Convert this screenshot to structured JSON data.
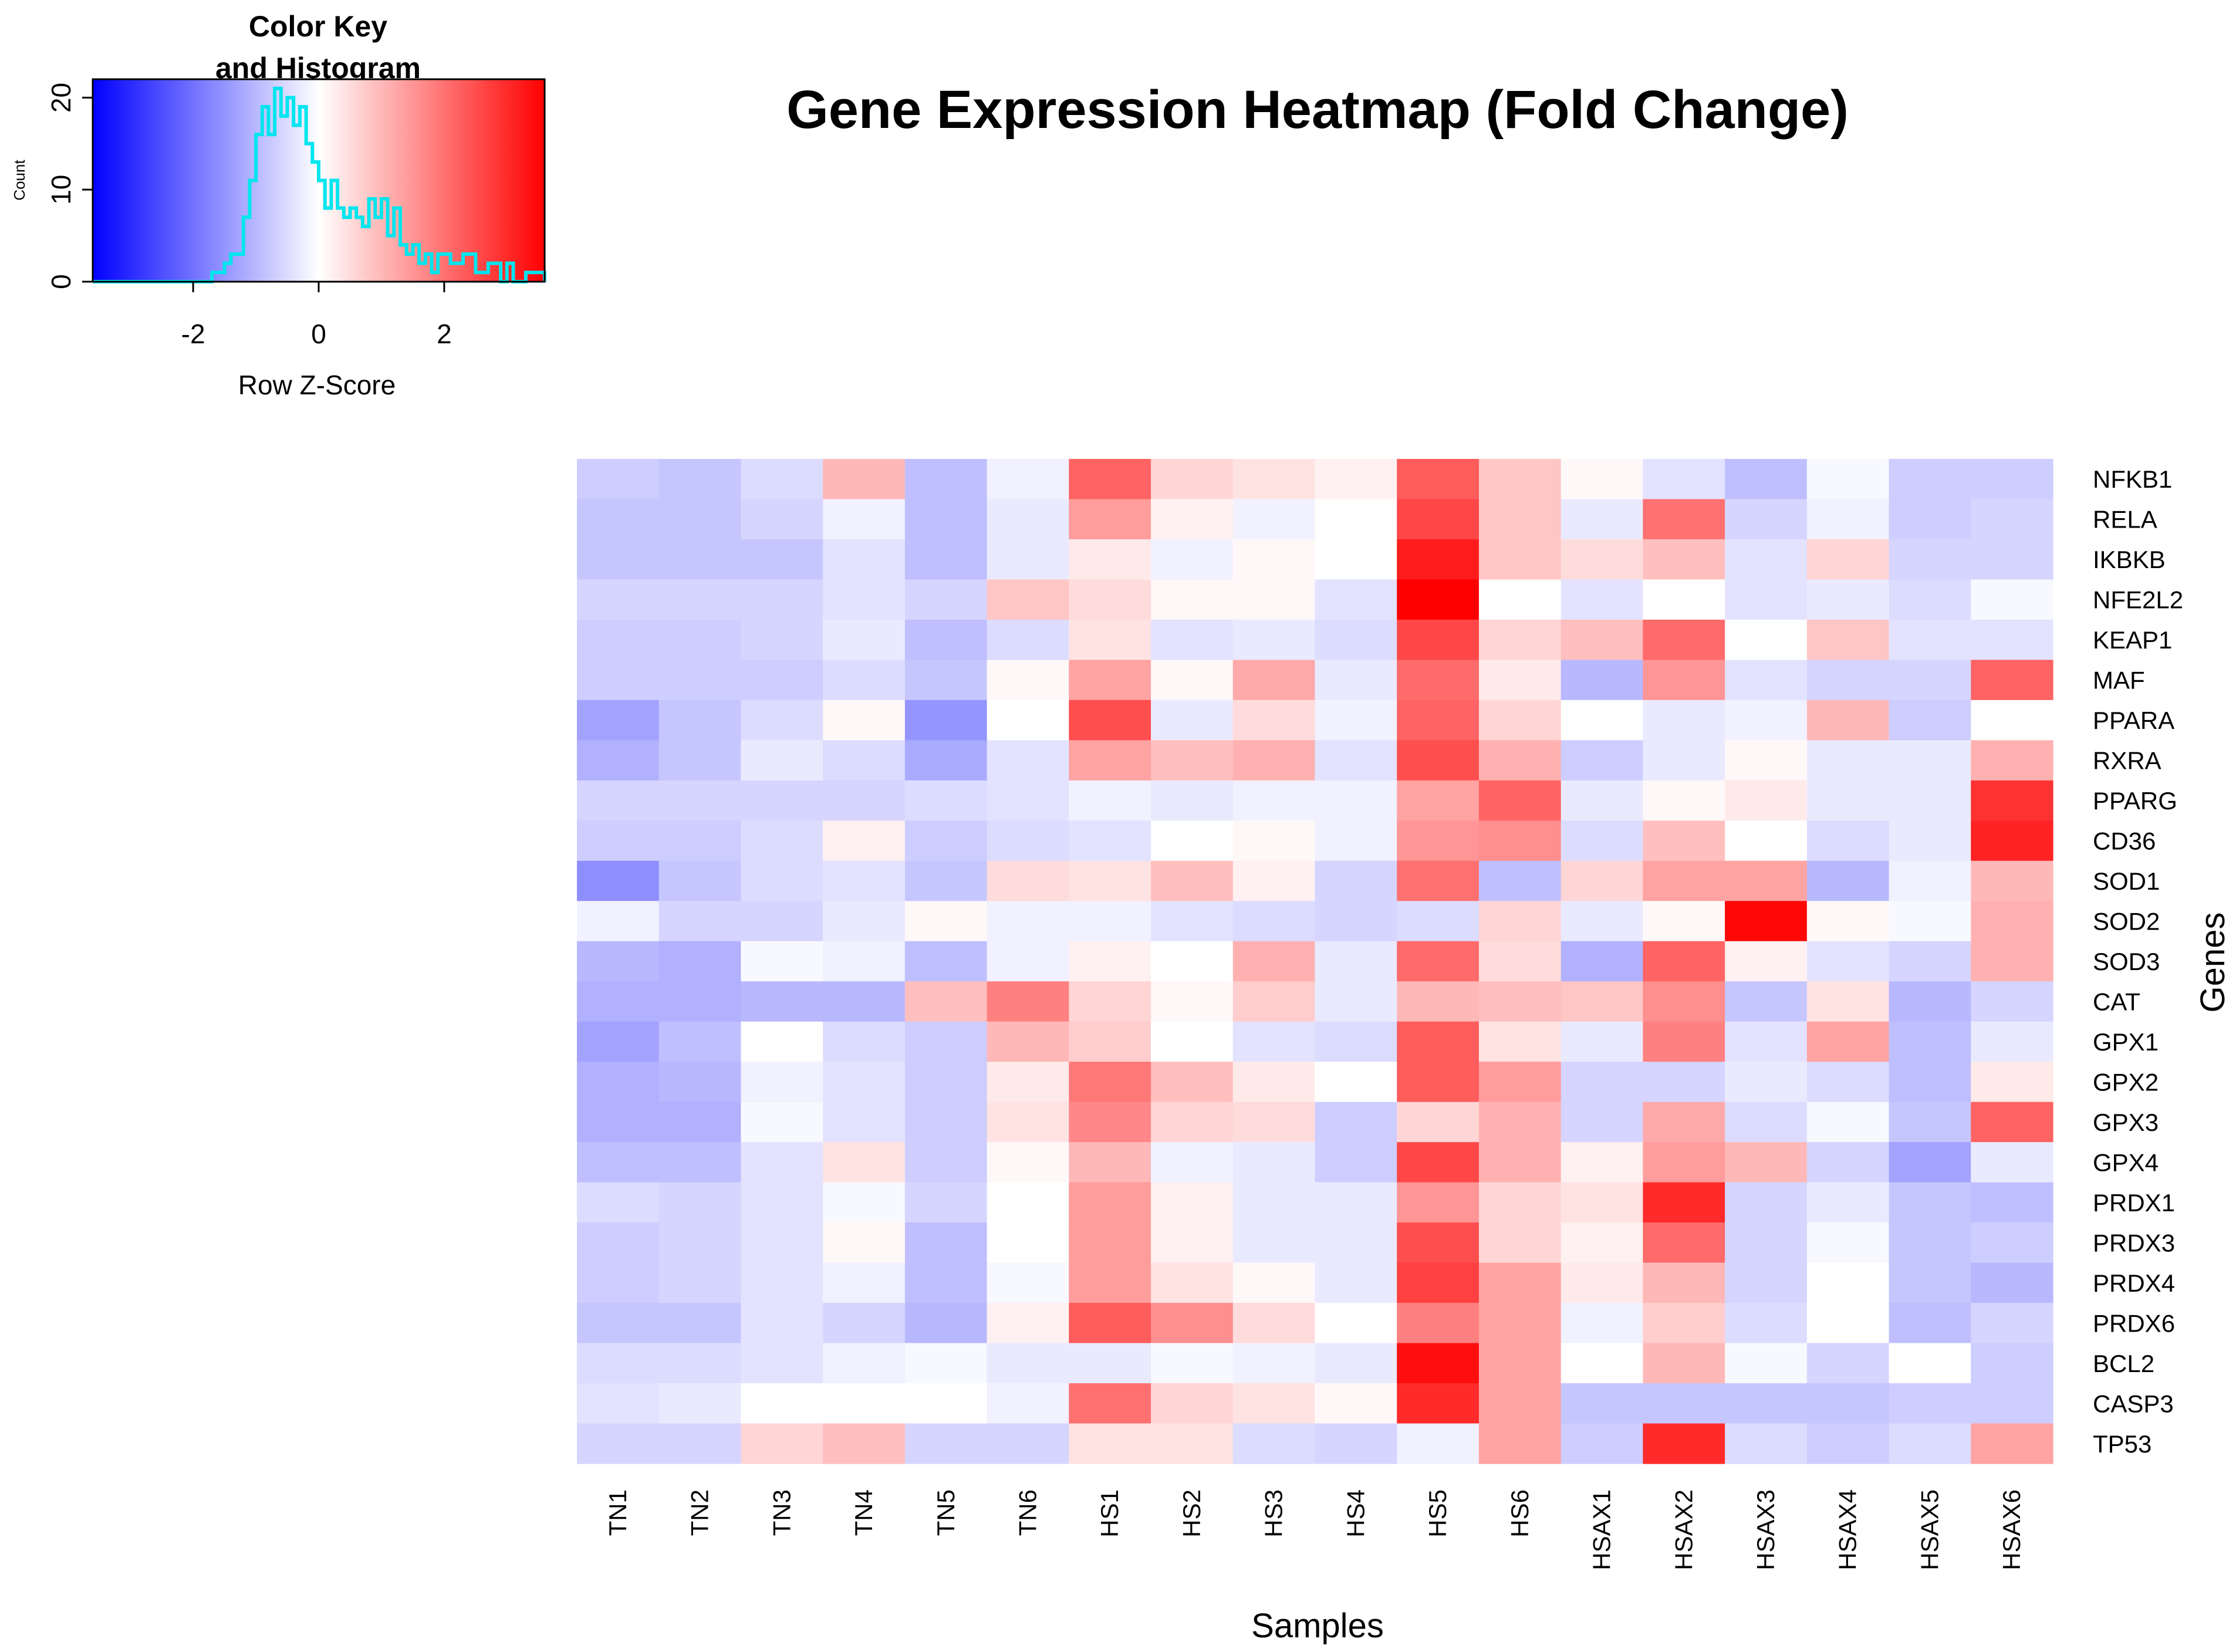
{
  "chart_data": {
    "type": "heatmap",
    "title": "Gene Expression Heatmap (Fold Change)",
    "xlabel": "Samples",
    "ylabel": "Genes",
    "columns": [
      "TN1",
      "TN2",
      "TN3",
      "TN4",
      "TN5",
      "TN6",
      "HS1",
      "HS2",
      "HS3",
      "HS4",
      "HS5",
      "HS6",
      "HSAX1",
      "HSAX2",
      "HSAX3",
      "HSAX4",
      "HSAX5",
      "HSAX6"
    ],
    "rows": [
      "NFKB1",
      "RELA",
      "IKBKB",
      "NFE2L2",
      "KEAP1",
      "MAF",
      "PPARA",
      "RXRA",
      "PPARG",
      "CD36",
      "SOD1",
      "SOD2",
      "SOD3",
      "CAT",
      "GPX1",
      "GPX2",
      "GPX3",
      "GPX4",
      "PRDX1",
      "PRDX3",
      "PRDX4",
      "PRDX6",
      "BCL2",
      "CASP3",
      "TP53"
    ],
    "values": [
      [
        -0.7,
        -0.8,
        -0.5,
        1.0,
        -0.9,
        -0.2,
        2.2,
        0.6,
        0.4,
        0.2,
        2.3,
        0.8,
        0.1,
        -0.4,
        -0.9,
        -0.1,
        -0.7,
        -0.7
      ],
      [
        -0.8,
        -0.8,
        -0.6,
        -0.2,
        -0.9,
        -0.3,
        1.4,
        0.2,
        -0.2,
        0.0,
        2.6,
        0.8,
        -0.3,
        2.0,
        -0.6,
        -0.2,
        -0.7,
        -0.6
      ],
      [
        -0.8,
        -0.8,
        -0.8,
        -0.4,
        -0.9,
        -0.3,
        0.3,
        -0.2,
        0.1,
        0.0,
        3.2,
        0.8,
        0.5,
        0.9,
        -0.4,
        0.6,
        -0.6,
        -0.6
      ],
      [
        -0.6,
        -0.6,
        -0.6,
        -0.4,
        -0.6,
        0.8,
        0.5,
        0.1,
        0.1,
        -0.4,
        3.6,
        0.0,
        -0.4,
        0.0,
        -0.4,
        -0.3,
        -0.5,
        -0.1
      ],
      [
        -0.7,
        -0.7,
        -0.6,
        -0.3,
        -0.9,
        -0.5,
        0.4,
        -0.4,
        -0.3,
        -0.5,
        2.6,
        0.6,
        0.9,
        2.1,
        0.0,
        0.8,
        -0.4,
        -0.4
      ],
      [
        -0.7,
        -0.7,
        -0.7,
        -0.5,
        -0.8,
        0.1,
        1.3,
        0.1,
        1.2,
        -0.3,
        2.1,
        0.3,
        -1.0,
        1.5,
        -0.4,
        -0.6,
        -0.6,
        2.2
      ],
      [
        -1.3,
        -0.8,
        -0.5,
        0.1,
        -1.5,
        0.0,
        2.5,
        -0.3,
        0.5,
        -0.2,
        2.2,
        0.6,
        0.0,
        -0.3,
        -0.2,
        1.0,
        -0.7,
        0.0
      ],
      [
        -1.1,
        -0.8,
        -0.3,
        -0.5,
        -1.2,
        -0.4,
        1.3,
        0.9,
        1.1,
        -0.4,
        2.5,
        1.1,
        -0.7,
        -0.3,
        0.1,
        -0.3,
        -0.3,
        1.1
      ],
      [
        -0.6,
        -0.6,
        -0.6,
        -0.6,
        -0.5,
        -0.4,
        -0.2,
        -0.3,
        -0.2,
        -0.2,
        1.3,
        2.2,
        -0.3,
        0.1,
        0.3,
        -0.3,
        -0.3,
        2.9
      ],
      [
        -0.7,
        -0.7,
        -0.5,
        0.2,
        -0.7,
        -0.5,
        -0.4,
        0.0,
        0.1,
        -0.2,
        1.5,
        1.6,
        -0.5,
        0.9,
        0.0,
        -0.5,
        -0.3,
        3.1
      ],
      [
        -1.6,
        -0.8,
        -0.5,
        -0.4,
        -0.8,
        0.5,
        0.4,
        0.9,
        0.2,
        -0.6,
        2.0,
        -0.9,
        0.6,
        1.3,
        1.3,
        -1.0,
        -0.2,
        1.0
      ],
      [
        -0.2,
        -0.6,
        -0.6,
        -0.3,
        0.1,
        -0.2,
        -0.2,
        -0.4,
        -0.5,
        -0.6,
        -0.5,
        0.6,
        -0.3,
        0.1,
        3.5,
        0.1,
        -0.1,
        1.1
      ],
      [
        -1.0,
        -1.1,
        -0.1,
        -0.2,
        -0.9,
        -0.2,
        0.2,
        0.0,
        1.1,
        -0.3,
        2.1,
        0.5,
        -1.1,
        2.2,
        0.2,
        -0.4,
        -0.6,
        1.1
      ],
      [
        -1.1,
        -1.1,
        -1.0,
        -1.0,
        0.9,
        1.8,
        0.6,
        0.1,
        0.7,
        -0.3,
        1.0,
        0.9,
        0.8,
        1.6,
        -0.8,
        0.4,
        -1.0,
        -0.6
      ],
      [
        -1.3,
        -0.9,
        0.0,
        -0.5,
        -0.7,
        1.0,
        0.7,
        0.0,
        -0.4,
        -0.5,
        2.3,
        0.4,
        -0.3,
        1.8,
        -0.4,
        1.3,
        -0.9,
        -0.3
      ],
      [
        -1.1,
        -1.0,
        -0.2,
        -0.4,
        -0.7,
        0.3,
        1.9,
        0.9,
        0.3,
        0.0,
        2.3,
        1.4,
        -0.6,
        -0.6,
        -0.3,
        -0.5,
        -0.9,
        0.3
      ],
      [
        -1.1,
        -1.1,
        -0.1,
        -0.4,
        -0.7,
        0.4,
        1.7,
        0.6,
        0.5,
        -0.7,
        0.6,
        1.1,
        -0.6,
        1.2,
        -0.5,
        -0.1,
        -0.8,
        2.2
      ],
      [
        -0.9,
        -0.9,
        -0.4,
        0.4,
        -0.7,
        0.1,
        1.0,
        -0.2,
        -0.3,
        -0.7,
        2.6,
        1.1,
        0.2,
        1.4,
        1.0,
        -0.6,
        -1.3,
        -0.3
      ],
      [
        -0.5,
        -0.6,
        -0.4,
        -0.1,
        -0.6,
        0.0,
        1.4,
        0.2,
        -0.3,
        -0.3,
        1.5,
        0.6,
        0.4,
        3.0,
        -0.6,
        -0.3,
        -0.8,
        -0.9
      ],
      [
        -0.7,
        -0.6,
        -0.4,
        0.1,
        -0.9,
        0.0,
        1.4,
        0.2,
        -0.3,
        -0.3,
        2.5,
        0.6,
        0.2,
        2.1,
        -0.6,
        -0.1,
        -0.8,
        -0.7
      ],
      [
        -0.7,
        -0.6,
        -0.4,
        -0.2,
        -0.9,
        -0.1,
        1.4,
        0.4,
        0.1,
        -0.3,
        2.7,
        1.3,
        0.3,
        1.0,
        -0.6,
        0.0,
        -0.8,
        -1.0
      ],
      [
        -0.8,
        -0.8,
        -0.4,
        -0.6,
        -1.0,
        0.2,
        2.3,
        1.6,
        0.5,
        0.0,
        1.8,
        1.3,
        -0.2,
        0.7,
        -0.5,
        0.0,
        -0.9,
        -0.6
      ],
      [
        -0.5,
        -0.5,
        -0.4,
        -0.2,
        -0.1,
        -0.3,
        -0.3,
        -0.1,
        -0.2,
        -0.3,
        3.4,
        1.3,
        0.0,
        1.0,
        -0.1,
        -0.6,
        0.0,
        -0.7
      ],
      [
        -0.4,
        -0.3,
        0.0,
        0.0,
        0.0,
        -0.2,
        2.0,
        0.6,
        0.4,
        0.1,
        3.0,
        1.3,
        -0.8,
        -0.8,
        -0.8,
        -0.8,
        -0.7,
        -0.7
      ],
      [
        -0.6,
        -0.6,
        0.6,
        0.9,
        -0.6,
        -0.6,
        0.4,
        0.4,
        -0.5,
        -0.6,
        -0.2,
        1.3,
        -0.7,
        3.0,
        -0.5,
        -0.7,
        -0.5,
        1.3
      ]
    ],
    "color_scale": {
      "low": "#0000ff",
      "mid": "#ffffff",
      "high": "#ff0000",
      "range": [
        -3.6,
        3.6
      ]
    },
    "color_key": {
      "title_line1": "Color Key",
      "title_line2": "and Histogram",
      "xlabel": "Row Z-Score",
      "ylabel": "Count",
      "xticks": [
        "-2",
        "0",
        "2"
      ],
      "xtick_values": [
        -2,
        0,
        2
      ],
      "yticks": [
        "0",
        "10",
        "20"
      ],
      "ytick_values": [
        0,
        10,
        20
      ],
      "xlim": [
        -3.6,
        3.6
      ],
      "ylim": [
        0,
        22
      ],
      "histogram_color": "#00e5ee",
      "histogram": [
        {
          "x": -3.6,
          "y": 0
        },
        {
          "x": -1.8,
          "y": 0
        },
        {
          "x": -1.7,
          "y": 1
        },
        {
          "x": -1.5,
          "y": 2
        },
        {
          "x": -1.4,
          "y": 3
        },
        {
          "x": -1.2,
          "y": 7
        },
        {
          "x": -1.1,
          "y": 11
        },
        {
          "x": -1.0,
          "y": 16
        },
        {
          "x": -0.9,
          "y": 19
        },
        {
          "x": -0.8,
          "y": 16
        },
        {
          "x": -0.7,
          "y": 21
        },
        {
          "x": -0.6,
          "y": 18
        },
        {
          "x": -0.5,
          "y": 20
        },
        {
          "x": -0.4,
          "y": 17
        },
        {
          "x": -0.3,
          "y": 19
        },
        {
          "x": -0.2,
          "y": 15
        },
        {
          "x": -0.1,
          "y": 13
        },
        {
          "x": 0.0,
          "y": 11
        },
        {
          "x": 0.1,
          "y": 8
        },
        {
          "x": 0.2,
          "y": 11
        },
        {
          "x": 0.3,
          "y": 8
        },
        {
          "x": 0.4,
          "y": 7
        },
        {
          "x": 0.5,
          "y": 8
        },
        {
          "x": 0.6,
          "y": 7
        },
        {
          "x": 0.7,
          "y": 6
        },
        {
          "x": 0.8,
          "y": 9
        },
        {
          "x": 0.9,
          "y": 7
        },
        {
          "x": 1.0,
          "y": 9
        },
        {
          "x": 1.1,
          "y": 5
        },
        {
          "x": 1.2,
          "y": 8
        },
        {
          "x": 1.3,
          "y": 4
        },
        {
          "x": 1.4,
          "y": 3
        },
        {
          "x": 1.5,
          "y": 4
        },
        {
          "x": 1.6,
          "y": 2
        },
        {
          "x": 1.7,
          "y": 3
        },
        {
          "x": 1.8,
          "y": 1
        },
        {
          "x": 1.9,
          "y": 3
        },
        {
          "x": 2.1,
          "y": 2
        },
        {
          "x": 2.3,
          "y": 3
        },
        {
          "x": 2.5,
          "y": 1
        },
        {
          "x": 2.7,
          "y": 2
        },
        {
          "x": 2.9,
          "y": 0
        },
        {
          "x": 3.0,
          "y": 2
        },
        {
          "x": 3.1,
          "y": 0
        },
        {
          "x": 3.3,
          "y": 1
        },
        {
          "x": 3.5,
          "y": 1
        },
        {
          "x": 3.6,
          "y": 0
        }
      ]
    }
  }
}
